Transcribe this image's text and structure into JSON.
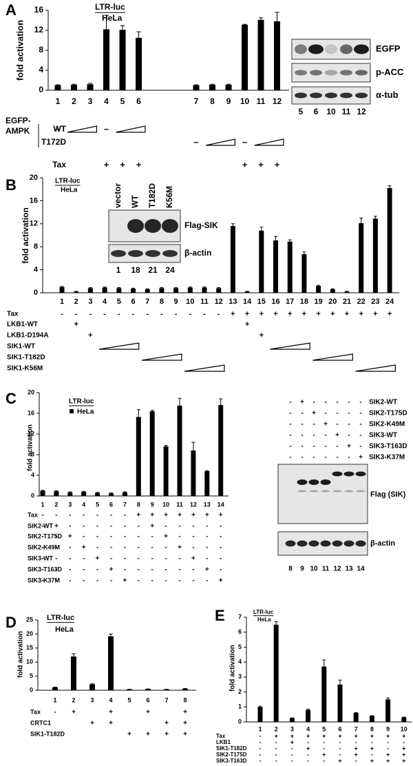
{
  "chart_data": [
    {
      "type": "bar",
      "panel": "A",
      "annotations": [
        "LTR-luc",
        "HeLa"
      ],
      "y_label": "fold activation",
      "color": "#000000",
      "categories": [
        "1",
        "2",
        "3",
        "4",
        "5",
        "6",
        "7",
        "8",
        "9",
        "10",
        "11",
        "12"
      ],
      "values": [
        1.0,
        1.1,
        1.2,
        12.2,
        12.1,
        10.5,
        1.0,
        1.1,
        1.1,
        13.1,
        14.1,
        13.8
      ],
      "errors": [
        0.1,
        0.1,
        0.2,
        2.8,
        0.8,
        1.2,
        0.1,
        0.1,
        0.1,
        0.1,
        0.4,
        1.8
      ],
      "ylim": [
        0,
        16
      ],
      "yticks": [
        0,
        4,
        8,
        12,
        16
      ],
      "treatment_group": [
        "EGFP-",
        "AMPK"
      ],
      "treatments": [
        {
          "label": "WT",
          "cells": [
            "–",
            null,
            null,
            "–",
            null,
            null,
            null,
            null,
            null,
            null,
            null,
            null
          ]
        },
        {
          "label": "T172D",
          "cells": [
            null,
            null,
            null,
            null,
            null,
            null,
            "–",
            null,
            null,
            "–",
            null,
            null
          ]
        },
        {
          "label": "Tax",
          "cells": [
            null,
            null,
            null,
            "+",
            "+",
            "+",
            null,
            null,
            null,
            "+",
            "+",
            "+"
          ]
        }
      ],
      "blot": {
        "lanes": [
          "5",
          "6",
          "10",
          "11",
          "12"
        ],
        "rows": [
          "EGFP",
          "p-ACC",
          "α-tub"
        ]
      }
    },
    {
      "type": "bar",
      "panel": "B",
      "annotations": [
        "LTR-luc",
        "HeLa"
      ],
      "y_label": "fold activation",
      "color": "#000000",
      "categories": [
        "1",
        "2",
        "3",
        "4",
        "5",
        "6",
        "7",
        "8",
        "9",
        "10",
        "11",
        "12",
        "13",
        "14",
        "15",
        "16",
        "17",
        "18",
        "19",
        "20",
        "21",
        "22",
        "23",
        "24"
      ],
      "values": [
        1.0,
        0.2,
        0.8,
        0.9,
        0.8,
        0.7,
        0.6,
        0.8,
        0.8,
        0.9,
        0.9,
        0.8,
        11.6,
        0.2,
        10.8,
        9.1,
        8.9,
        6.7,
        1.2,
        0.6,
        0.2,
        12.1,
        12.9,
        18.2
      ],
      "errors": [
        0.1,
        0.05,
        0.1,
        0.1,
        0.1,
        0.1,
        0.1,
        0.1,
        0.1,
        0.1,
        0.1,
        0.1,
        0.4,
        0.05,
        0.6,
        0.7,
        0.3,
        0.4,
        0.1,
        0.1,
        0.05,
        0.9,
        0.4,
        0.4
      ],
      "ylim": [
        0,
        20
      ],
      "yticks": [
        0,
        4,
        8,
        12,
        16,
        20
      ],
      "treatments": [
        {
          "label": "Tax",
          "cells": [
            "-",
            "-",
            "-",
            "-",
            "-",
            "-",
            "-",
            "-",
            "-",
            "-",
            "-",
            "-",
            "+",
            "+",
            "+",
            "+",
            "+",
            "+",
            "+",
            "+",
            "+",
            "+",
            "+",
            "+"
          ]
        },
        {
          "label": "LKB1-WT",
          "cells": [
            null,
            "+",
            null,
            null,
            null,
            null,
            null,
            null,
            null,
            null,
            null,
            null,
            null,
            "+",
            null,
            null,
            null,
            null,
            null,
            null,
            null,
            null,
            null,
            null
          ]
        },
        {
          "label": "LKB1-D194A",
          "cells": [
            null,
            null,
            "+",
            null,
            null,
            null,
            null,
            null,
            null,
            null,
            null,
            null,
            null,
            null,
            "+",
            null,
            null,
            null,
            null,
            null,
            null,
            null,
            null,
            null
          ]
        },
        {
          "label": "SIK1-WT",
          "cells": [
            null,
            null,
            null,
            null,
            null,
            null,
            null,
            null,
            null,
            null,
            null,
            null,
            null,
            null,
            null,
            null,
            null,
            null,
            null,
            null,
            null,
            null,
            null,
            null
          ]
        },
        {
          "label": "SIK1-T182D",
          "cells": [
            null,
            null,
            null,
            null,
            null,
            null,
            null,
            null,
            null,
            null,
            null,
            null,
            null,
            null,
            null,
            null,
            null,
            null,
            null,
            null,
            null,
            null,
            null,
            null
          ]
        },
        {
          "label": "SIK1-K56M",
          "cells": [
            null,
            null,
            null,
            null,
            null,
            null,
            null,
            null,
            null,
            null,
            null,
            null,
            null,
            null,
            null,
            null,
            null,
            null,
            null,
            null,
            null,
            null,
            null,
            null
          ]
        }
      ],
      "blot": {
        "headers": [
          "vector",
          "WT",
          "T182D",
          "K56M"
        ],
        "lanes": [
          "1",
          "18",
          "21",
          "24"
        ],
        "rows": [
          "Flag-SIK",
          "β-actin"
        ]
      }
    },
    {
      "type": "bar",
      "panel": "C",
      "annotations": [
        "LTR-luc",
        "HeLa"
      ],
      "y_label": "fold activation",
      "color": "#000000",
      "categories": [
        "1",
        "2",
        "3",
        "4",
        "5",
        "6",
        "7",
        "8",
        "9",
        "10",
        "11",
        "12",
        "13",
        "14"
      ],
      "values": [
        1.0,
        0.9,
        0.7,
        0.8,
        0.6,
        0.5,
        0.7,
        15.3,
        16.4,
        9.6,
        17.5,
        8.8,
        4.8,
        17.6
      ],
      "errors": [
        0.1,
        0.1,
        0.1,
        0.1,
        0.1,
        0.1,
        0.1,
        1.4,
        0.2,
        0.2,
        1.4,
        1.6,
        0.1,
        1.2
      ],
      "ylim": [
        0,
        20
      ],
      "yticks": [
        0,
        4,
        8,
        12,
        16,
        20
      ],
      "treatments": [
        {
          "label": "Tax",
          "cells": [
            "-",
            "-",
            "-",
            "-",
            "-",
            "-",
            "-",
            "+",
            "+",
            "+",
            "+",
            "+",
            "+",
            "+"
          ]
        },
        {
          "label": "SIK2-WT",
          "cells": [
            "-",
            "+",
            "-",
            "-",
            "-",
            "-",
            "-",
            "-",
            "+",
            "-",
            "-",
            "-",
            "-",
            "-"
          ]
        },
        {
          "label": "SIK2-T175D",
          "cells": [
            "-",
            "-",
            "+",
            "-",
            "-",
            "-",
            "-",
            "-",
            "-",
            "+",
            "-",
            "-",
            "-",
            "-"
          ]
        },
        {
          "label": "SIK2-K49M",
          "cells": [
            "-",
            "-",
            "-",
            "+",
            "-",
            "-",
            "-",
            "-",
            "-",
            "-",
            "+",
            "-",
            "-",
            "-"
          ]
        },
        {
          "label": "SIK3-WT",
          "cells": [
            "-",
            "-",
            "-",
            "-",
            "+",
            "-",
            "-",
            "-",
            "-",
            "-",
            "-",
            "+",
            "-",
            "-"
          ]
        },
        {
          "label": "SIK3-T163D",
          "cells": [
            "-",
            "-",
            "-",
            "-",
            "-",
            "+",
            "-",
            "-",
            "-",
            "-",
            "-",
            "-",
            "+",
            "-"
          ]
        },
        {
          "label": "SIK3-K37M",
          "cells": [
            "-",
            "-",
            "-",
            "-",
            "-",
            "-",
            "+",
            "-",
            "-",
            "-",
            "-",
            "-",
            "-",
            "+"
          ]
        }
      ],
      "blot": {
        "conditions": [
          {
            "label": "SIK2-WT",
            "cells": [
              "-",
              "+",
              "-",
              "-",
              "-",
              "-",
              "-"
            ]
          },
          {
            "label": "SIK2-T175D",
            "cells": [
              "-",
              "-",
              "+",
              "-",
              "-",
              "-",
              "-"
            ]
          },
          {
            "label": "SIK2-K49M",
            "cells": [
              "-",
              "-",
              "-",
              "+",
              "-",
              "-",
              "-"
            ]
          },
          {
            "label": "SIK3-WT",
            "cells": [
              "-",
              "-",
              "-",
              "-",
              "+",
              "-",
              "-"
            ]
          },
          {
            "label": "SIK3-T163D",
            "cells": [
              "-",
              "-",
              "-",
              "-",
              "-",
              "+",
              "-"
            ]
          },
          {
            "label": "SIK3-K37M",
            "cells": [
              "-",
              "-",
              "-",
              "-",
              "-",
              "-",
              "+"
            ]
          }
        ],
        "lanes": [
          "8",
          "9",
          "10",
          "11",
          "12",
          "13",
          "14"
        ],
        "rows": [
          "Flag (SIK)",
          "β-actin"
        ]
      }
    },
    {
      "type": "bar",
      "panel": "D",
      "annotations": [
        "LTR-luc",
        "HeLa"
      ],
      "y_label": "fold activation",
      "color": "#000000",
      "categories": [
        "1",
        "2",
        "3",
        "4",
        "5",
        "6",
        "7",
        "8"
      ],
      "values": [
        1.0,
        12.0,
        2.1,
        19.2,
        0.3,
        0.4,
        0.3,
        0.5
      ],
      "errors": [
        0.1,
        1.0,
        0.2,
        0.8,
        0.05,
        0.05,
        0.05,
        0.1
      ],
      "ylim": [
        0,
        25
      ],
      "yticks": [
        0,
        5,
        10,
        15,
        20,
        25
      ],
      "treatments": [
        {
          "label": "Tax",
          "cells": [
            "-",
            "+",
            null,
            "+",
            null,
            "+",
            null,
            "+"
          ]
        },
        {
          "label": "CRTC1",
          "cells": [
            null,
            null,
            "+",
            "+",
            null,
            null,
            "+",
            "+"
          ]
        },
        {
          "label": "SIK1-T182D",
          "cells": [
            null,
            null,
            null,
            null,
            "+",
            "+",
            "+",
            "+"
          ]
        }
      ]
    },
    {
      "type": "bar",
      "panel": "E",
      "annotations": [
        "LTR-luc",
        "HeLa"
      ],
      "y_label": "fold activation",
      "color": "#000000",
      "categories": [
        "1",
        "2",
        "3",
        "4",
        "5",
        "6",
        "7",
        "8",
        "9",
        "10"
      ],
      "values": [
        1.0,
        6.5,
        0.25,
        0.8,
        3.7,
        2.5,
        0.6,
        0.4,
        1.5,
        0.3
      ],
      "errors": [
        0.05,
        0.2,
        0.02,
        0.05,
        0.45,
        0.3,
        0.03,
        0.02,
        0.1,
        0.03
      ],
      "ylim": [
        0,
        7
      ],
      "yticks": [
        0,
        1,
        2,
        3,
        4,
        5,
        6,
        7
      ],
      "treatments": [
        {
          "label": "Tax",
          "cells": [
            "-",
            "+",
            "+",
            "+",
            "+",
            "+",
            "+",
            "+",
            "+",
            "+"
          ]
        },
        {
          "label": "LKB1",
          "cells": [
            "-",
            "-",
            "+",
            "-",
            "-",
            "-",
            "-",
            "-",
            "-",
            "-"
          ]
        },
        {
          "label": "SIK1-T182D",
          "cells": [
            "-",
            "-",
            "-",
            "+",
            "-",
            "-",
            "+",
            "+",
            "-",
            "+"
          ]
        },
        {
          "label": "SIK2-T175D",
          "cells": [
            "-",
            "-",
            "-",
            "-",
            "+",
            "-",
            "+",
            "-",
            "+",
            "+"
          ]
        },
        {
          "label": "SIK3-T163D",
          "cells": [
            "-",
            "-",
            "-",
            "-",
            "-",
            "+",
            "-",
            "+",
            "+",
            "+"
          ]
        }
      ]
    }
  ]
}
